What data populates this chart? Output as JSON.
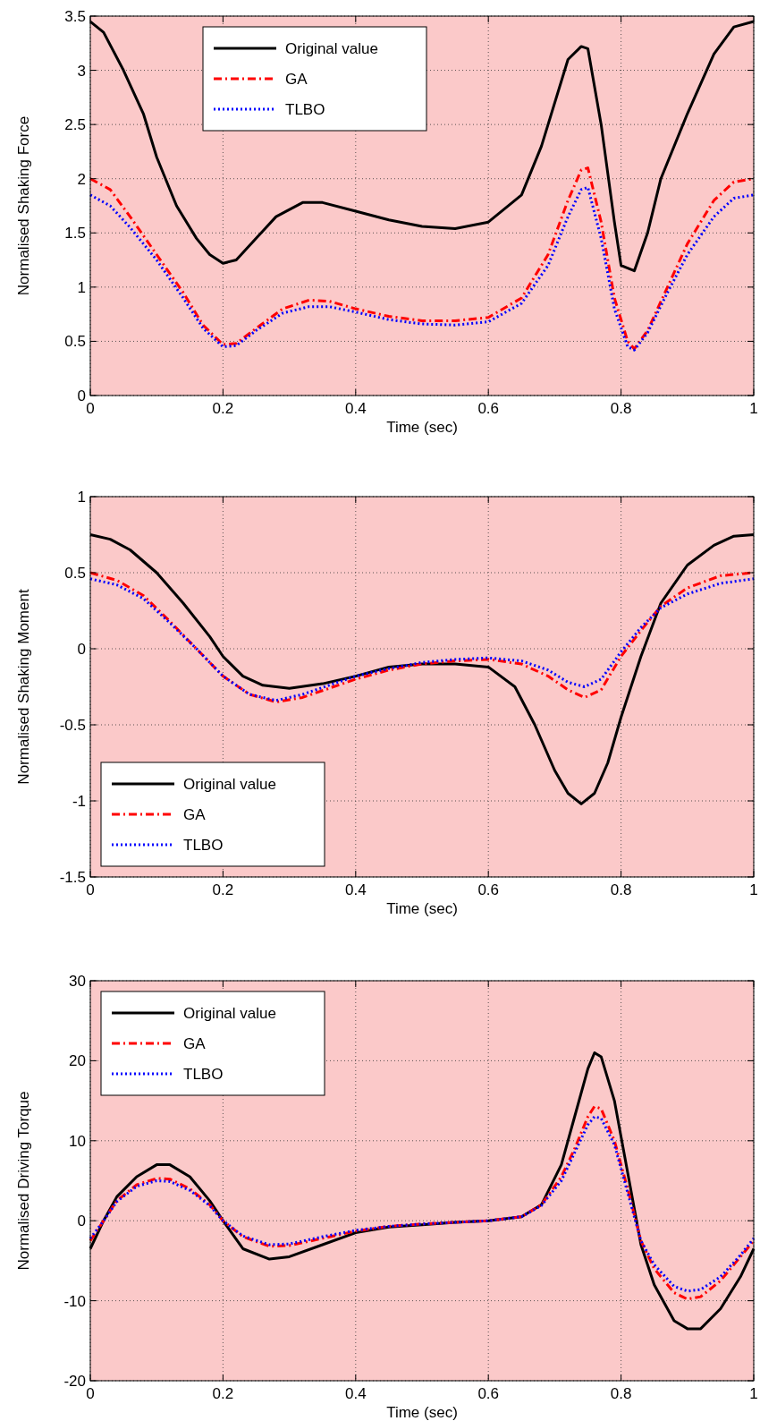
{
  "chart_data": [
    {
      "type": "line",
      "ylabel": "Normalised Shaking Force",
      "xlabel": "Time (sec)",
      "xlim": [
        0,
        1
      ],
      "xticks": [
        0,
        0.2,
        0.4,
        0.6,
        0.8,
        1
      ],
      "ylim": [
        0,
        3.5
      ],
      "yticks": [
        0,
        0.5,
        1,
        1.5,
        2,
        2.5,
        3,
        3.5
      ],
      "grid": true,
      "legend": "top",
      "series": [
        {
          "name": "Original value",
          "color": "#000000",
          "line_style": "solid",
          "x": [
            0,
            0.02,
            0.05,
            0.08,
            0.1,
            0.13,
            0.16,
            0.18,
            0.2,
            0.22,
            0.25,
            0.28,
            0.32,
            0.35,
            0.4,
            0.45,
            0.5,
            0.55,
            0.6,
            0.65,
            0.68,
            0.72,
            0.74,
            0.75,
            0.77,
            0.79,
            0.8,
            0.82,
            0.84,
            0.86,
            0.9,
            0.94,
            0.97,
            1
          ],
          "values": [
            3.45,
            3.35,
            3.0,
            2.6,
            2.2,
            1.75,
            1.45,
            1.3,
            1.22,
            1.25,
            1.45,
            1.65,
            1.78,
            1.78,
            1.7,
            1.62,
            1.56,
            1.54,
            1.6,
            1.85,
            2.3,
            3.1,
            3.22,
            3.2,
            2.5,
            1.6,
            1.2,
            1.15,
            1.5,
            2.0,
            2.6,
            3.15,
            3.4,
            3.45
          ]
        },
        {
          "name": "GA",
          "color": "#ff0000",
          "line_style": "dashed",
          "x": [
            0,
            0.03,
            0.06,
            0.1,
            0.14,
            0.17,
            0.2,
            0.22,
            0.25,
            0.29,
            0.33,
            0.36,
            0.4,
            0.45,
            0.5,
            0.55,
            0.6,
            0.65,
            0.69,
            0.72,
            0.74,
            0.75,
            0.77,
            0.79,
            0.81,
            0.82,
            0.84,
            0.87,
            0.9,
            0.94,
            0.97,
            1
          ],
          "values": [
            2.0,
            1.9,
            1.65,
            1.3,
            0.95,
            0.65,
            0.47,
            0.48,
            0.62,
            0.8,
            0.88,
            0.87,
            0.8,
            0.73,
            0.69,
            0.69,
            0.72,
            0.9,
            1.3,
            1.8,
            2.08,
            2.1,
            1.6,
            0.9,
            0.5,
            0.43,
            0.6,
            1.0,
            1.4,
            1.8,
            1.97,
            2.0
          ]
        },
        {
          "name": "TLBO",
          "color": "#0000ff",
          "line_style": "dotted",
          "x": [
            0,
            0.03,
            0.06,
            0.1,
            0.14,
            0.17,
            0.2,
            0.22,
            0.25,
            0.29,
            0.33,
            0.36,
            0.4,
            0.45,
            0.5,
            0.55,
            0.6,
            0.65,
            0.69,
            0.72,
            0.74,
            0.75,
            0.77,
            0.79,
            0.81,
            0.82,
            0.84,
            0.87,
            0.9,
            0.94,
            0.97,
            1
          ],
          "values": [
            1.85,
            1.75,
            1.55,
            1.25,
            0.9,
            0.62,
            0.45,
            0.46,
            0.6,
            0.76,
            0.82,
            0.82,
            0.77,
            0.7,
            0.66,
            0.65,
            0.68,
            0.85,
            1.2,
            1.65,
            1.9,
            1.92,
            1.45,
            0.8,
            0.45,
            0.42,
            0.58,
            0.95,
            1.3,
            1.65,
            1.82,
            1.85
          ]
        }
      ]
    },
    {
      "type": "line",
      "ylabel": "Normalised Shaking Moment",
      "xlabel": "Time (sec)",
      "xlim": [
        0,
        1
      ],
      "xticks": [
        0,
        0.2,
        0.4,
        0.6,
        0.8,
        1
      ],
      "ylim": [
        -1.5,
        1
      ],
      "yticks": [
        -1.5,
        -1,
        -0.5,
        0,
        0.5,
        1
      ],
      "grid": true,
      "legend": "bottom left",
      "series": [
        {
          "name": "Original value",
          "color": "#000000",
          "line_style": "solid",
          "x": [
            0,
            0.03,
            0.06,
            0.1,
            0.14,
            0.18,
            0.2,
            0.23,
            0.26,
            0.3,
            0.35,
            0.4,
            0.45,
            0.5,
            0.55,
            0.6,
            0.64,
            0.67,
            0.7,
            0.72,
            0.74,
            0.76,
            0.78,
            0.8,
            0.83,
            0.86,
            0.9,
            0.94,
            0.97,
            1
          ],
          "values": [
            0.75,
            0.72,
            0.65,
            0.5,
            0.3,
            0.08,
            -0.05,
            -0.18,
            -0.24,
            -0.26,
            -0.23,
            -0.18,
            -0.12,
            -0.1,
            -0.1,
            -0.12,
            -0.25,
            -0.5,
            -0.8,
            -0.95,
            -1.02,
            -0.95,
            -0.75,
            -0.45,
            -0.05,
            0.3,
            0.55,
            0.68,
            0.74,
            0.75
          ]
        },
        {
          "name": "GA",
          "color": "#ff0000",
          "line_style": "dashed",
          "x": [
            0,
            0.04,
            0.08,
            0.12,
            0.16,
            0.2,
            0.24,
            0.28,
            0.32,
            0.36,
            0.4,
            0.45,
            0.5,
            0.55,
            0.6,
            0.65,
            0.69,
            0.72,
            0.745,
            0.77,
            0.8,
            0.83,
            0.86,
            0.9,
            0.95,
            1
          ],
          "values": [
            0.5,
            0.45,
            0.35,
            0.18,
            0.0,
            -0.18,
            -0.3,
            -0.35,
            -0.32,
            -0.26,
            -0.2,
            -0.14,
            -0.1,
            -0.08,
            -0.07,
            -0.1,
            -0.18,
            -0.27,
            -0.32,
            -0.27,
            -0.05,
            0.12,
            0.28,
            0.4,
            0.48,
            0.5
          ]
        },
        {
          "name": "TLBO",
          "color": "#0000ff",
          "line_style": "dotted",
          "x": [
            0,
            0.04,
            0.08,
            0.12,
            0.16,
            0.2,
            0.24,
            0.28,
            0.32,
            0.36,
            0.4,
            0.45,
            0.5,
            0.55,
            0.6,
            0.65,
            0.69,
            0.72,
            0.745,
            0.77,
            0.8,
            0.83,
            0.86,
            0.9,
            0.95,
            1
          ],
          "values": [
            0.46,
            0.42,
            0.33,
            0.17,
            0.0,
            -0.18,
            -0.3,
            -0.34,
            -0.3,
            -0.24,
            -0.18,
            -0.13,
            -0.09,
            -0.07,
            -0.06,
            -0.08,
            -0.14,
            -0.22,
            -0.25,
            -0.2,
            -0.02,
            0.14,
            0.27,
            0.36,
            0.43,
            0.46
          ]
        }
      ]
    },
    {
      "type": "line",
      "ylabel": "Normalised Driving Torque",
      "xlabel": "Time (sec)",
      "xlim": [
        0,
        1
      ],
      "xticks": [
        0,
        0.2,
        0.4,
        0.6,
        0.8,
        1
      ],
      "ylim": [
        -20,
        30
      ],
      "yticks": [
        -20,
        -10,
        0,
        10,
        20,
        30
      ],
      "grid": true,
      "legend": "top left",
      "series": [
        {
          "name": "Original value",
          "color": "#000000",
          "line_style": "solid",
          "x": [
            0,
            0.02,
            0.04,
            0.07,
            0.1,
            0.12,
            0.15,
            0.18,
            0.2,
            0.23,
            0.27,
            0.3,
            0.35,
            0.4,
            0.45,
            0.5,
            0.55,
            0.6,
            0.65,
            0.68,
            0.71,
            0.73,
            0.75,
            0.76,
            0.77,
            0.79,
            0.81,
            0.83,
            0.85,
            0.88,
            0.9,
            0.92,
            0.95,
            0.98,
            1
          ],
          "values": [
            -3.5,
            0,
            3,
            5.5,
            7,
            7,
            5.5,
            2.5,
            0,
            -3.5,
            -4.8,
            -4.5,
            -3,
            -1.5,
            -0.8,
            -0.5,
            -0.2,
            0,
            0.5,
            2,
            7,
            13,
            19,
            21,
            20.5,
            15,
            6,
            -3,
            -8,
            -12.5,
            -13.5,
            -13.5,
            -11,
            -7,
            -3.5
          ]
        },
        {
          "name": "GA",
          "color": "#ff0000",
          "line_style": "dashed",
          "x": [
            0,
            0.02,
            0.04,
            0.07,
            0.1,
            0.12,
            0.15,
            0.18,
            0.2,
            0.23,
            0.27,
            0.3,
            0.35,
            0.4,
            0.45,
            0.5,
            0.55,
            0.6,
            0.65,
            0.68,
            0.71,
            0.73,
            0.75,
            0.76,
            0.77,
            0.79,
            0.81,
            0.83,
            0.85,
            0.88,
            0.9,
            0.92,
            0.95,
            0.98,
            1
          ],
          "values": [
            -2.5,
            0,
            2.5,
            4.5,
            5.3,
            5.2,
            4,
            2,
            0,
            -2,
            -3.2,
            -3.1,
            -2.2,
            -1.3,
            -0.7,
            -0.4,
            -0.2,
            0,
            0.5,
            2,
            5.5,
            9,
            13,
            14.3,
            14,
            10,
            4,
            -2.5,
            -6,
            -9,
            -9.8,
            -9.5,
            -7.5,
            -4.5,
            -2.5
          ]
        },
        {
          "name": "TLBO",
          "color": "#0000ff",
          "line_style": "dotted",
          "x": [
            0,
            0.02,
            0.04,
            0.07,
            0.1,
            0.12,
            0.15,
            0.18,
            0.2,
            0.23,
            0.27,
            0.3,
            0.35,
            0.4,
            0.45,
            0.5,
            0.55,
            0.6,
            0.65,
            0.68,
            0.71,
            0.73,
            0.75,
            0.76,
            0.77,
            0.79,
            0.81,
            0.83,
            0.85,
            0.88,
            0.9,
            0.92,
            0.95,
            0.98,
            1
          ],
          "values": [
            -2.2,
            0,
            2.4,
            4.3,
            5,
            4.9,
            3.8,
            1.9,
            0,
            -1.9,
            -3,
            -2.9,
            -2,
            -1.2,
            -0.7,
            -0.4,
            -0.2,
            0,
            0.5,
            1.9,
            5,
            8.5,
            12,
            13,
            12.8,
            9.5,
            3.5,
            -2.5,
            -5.5,
            -8.2,
            -8.8,
            -8.6,
            -7,
            -4.3,
            -2.2
          ]
        }
      ]
    }
  ]
}
